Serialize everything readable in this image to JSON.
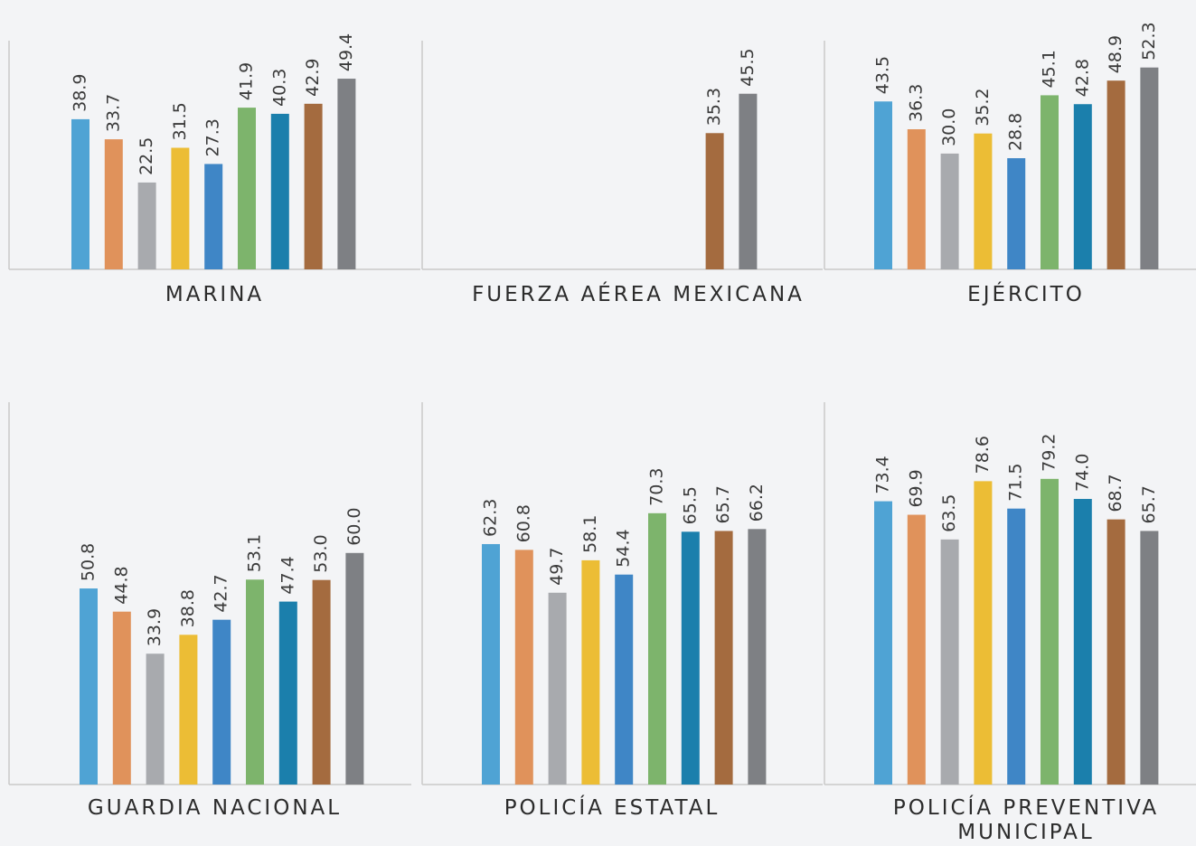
{
  "chart_data": [
    {
      "type": "bar",
      "title": "MARINA",
      "categories": [
        null,
        null,
        null,
        null,
        null,
        null,
        null,
        null,
        null
      ],
      "values": [
        38.9,
        33.7,
        22.5,
        31.5,
        27.3,
        41.9,
        40.3,
        42.9,
        49.4
      ],
      "value_labels": [
        "38.9",
        "33.7",
        "22.5",
        "31.5",
        "27.3",
        "41.9",
        "40.3",
        "42.9",
        "49.4"
      ],
      "colors": [
        "#4fa3d4",
        "#e0925b",
        "#a8aaae",
        "#ecbd35",
        "#3f86c6",
        "#7db46c",
        "#1b7fac",
        "#a46b3f",
        "#7e8084"
      ]
    },
    {
      "type": "bar",
      "title": "FUERZA AÉREA MEXICANA",
      "categories": [
        null,
        null,
        null,
        null,
        null,
        null,
        null,
        null,
        null
      ],
      "values": [
        null,
        null,
        null,
        null,
        null,
        null,
        null,
        35.3,
        45.5
      ],
      "value_labels": [
        null,
        null,
        null,
        null,
        null,
        null,
        null,
        "35.3",
        "45.5"
      ],
      "colors": [
        "#4fa3d4",
        "#e0925b",
        "#a8aaae",
        "#ecbd35",
        "#3f86c6",
        "#7db46c",
        "#1b7fac",
        "#a46b3f",
        "#7e8084"
      ]
    },
    {
      "type": "bar",
      "title": "EJÉRCITO",
      "categories": [
        null,
        null,
        null,
        null,
        null,
        null,
        null,
        null,
        null
      ],
      "values": [
        43.5,
        36.3,
        30.0,
        35.2,
        28.8,
        45.1,
        42.8,
        48.9,
        52.3
      ],
      "value_labels": [
        "43.5",
        "36.3",
        "30.0",
        "35.2",
        "28.8",
        "45.1",
        "42.8",
        "48.9",
        "52.3"
      ],
      "colors": [
        "#4fa3d4",
        "#e0925b",
        "#a8aaae",
        "#ecbd35",
        "#3f86c6",
        "#7db46c",
        "#1b7fac",
        "#a46b3f",
        "#7e8084"
      ]
    },
    {
      "type": "bar",
      "title": "GUARDIA NACIONAL",
      "categories": [
        null,
        null,
        null,
        null,
        null,
        null,
        null,
        null,
        null
      ],
      "values": [
        50.8,
        44.8,
        33.9,
        38.8,
        42.7,
        53.1,
        47.4,
        53.0,
        60.0
      ],
      "value_labels": [
        "50.8",
        "44.8",
        "33.9",
        "38.8",
        "42.7",
        "53.1",
        "47.4",
        "53.0",
        "60.0"
      ],
      "colors": [
        "#4fa3d4",
        "#e0925b",
        "#a8aaae",
        "#ecbd35",
        "#3f86c6",
        "#7db46c",
        "#1b7fac",
        "#a46b3f",
        "#7e8084"
      ]
    },
    {
      "type": "bar",
      "title": "POLICÍA ESTATAL",
      "categories": [
        null,
        null,
        null,
        null,
        null,
        null,
        null,
        null,
        null
      ],
      "values": [
        62.3,
        60.8,
        49.7,
        58.1,
        54.4,
        70.3,
        65.5,
        65.7,
        66.2
      ],
      "value_labels": [
        "62.3",
        "60.8",
        "49.7",
        "58.1",
        "54.4",
        "70.3",
        "65.5",
        "65.7",
        "66.2"
      ],
      "colors": [
        "#4fa3d4",
        "#e0925b",
        "#a8aaae",
        "#ecbd35",
        "#3f86c6",
        "#7db46c",
        "#1b7fac",
        "#a46b3f",
        "#7e8084"
      ]
    },
    {
      "type": "bar",
      "title": "POLICÍA PREVENTIVA MUNICIPAL",
      "categories": [
        null,
        null,
        null,
        null,
        null,
        null,
        null,
        null,
        null
      ],
      "values": [
        73.4,
        69.9,
        63.5,
        78.6,
        71.5,
        79.2,
        74.0,
        68.7,
        65.7
      ],
      "value_labels": [
        "73.4",
        "69.9",
        "63.5",
        "78.6",
        "71.5",
        "79.2",
        "74.0",
        "68.7",
        "65.7"
      ],
      "colors": [
        "#4fa3d4",
        "#e0925b",
        "#a8aaae",
        "#ecbd35",
        "#3f86c6",
        "#7db46c",
        "#1b7fac",
        "#a46b3f",
        "#7e8084"
      ]
    }
  ]
}
